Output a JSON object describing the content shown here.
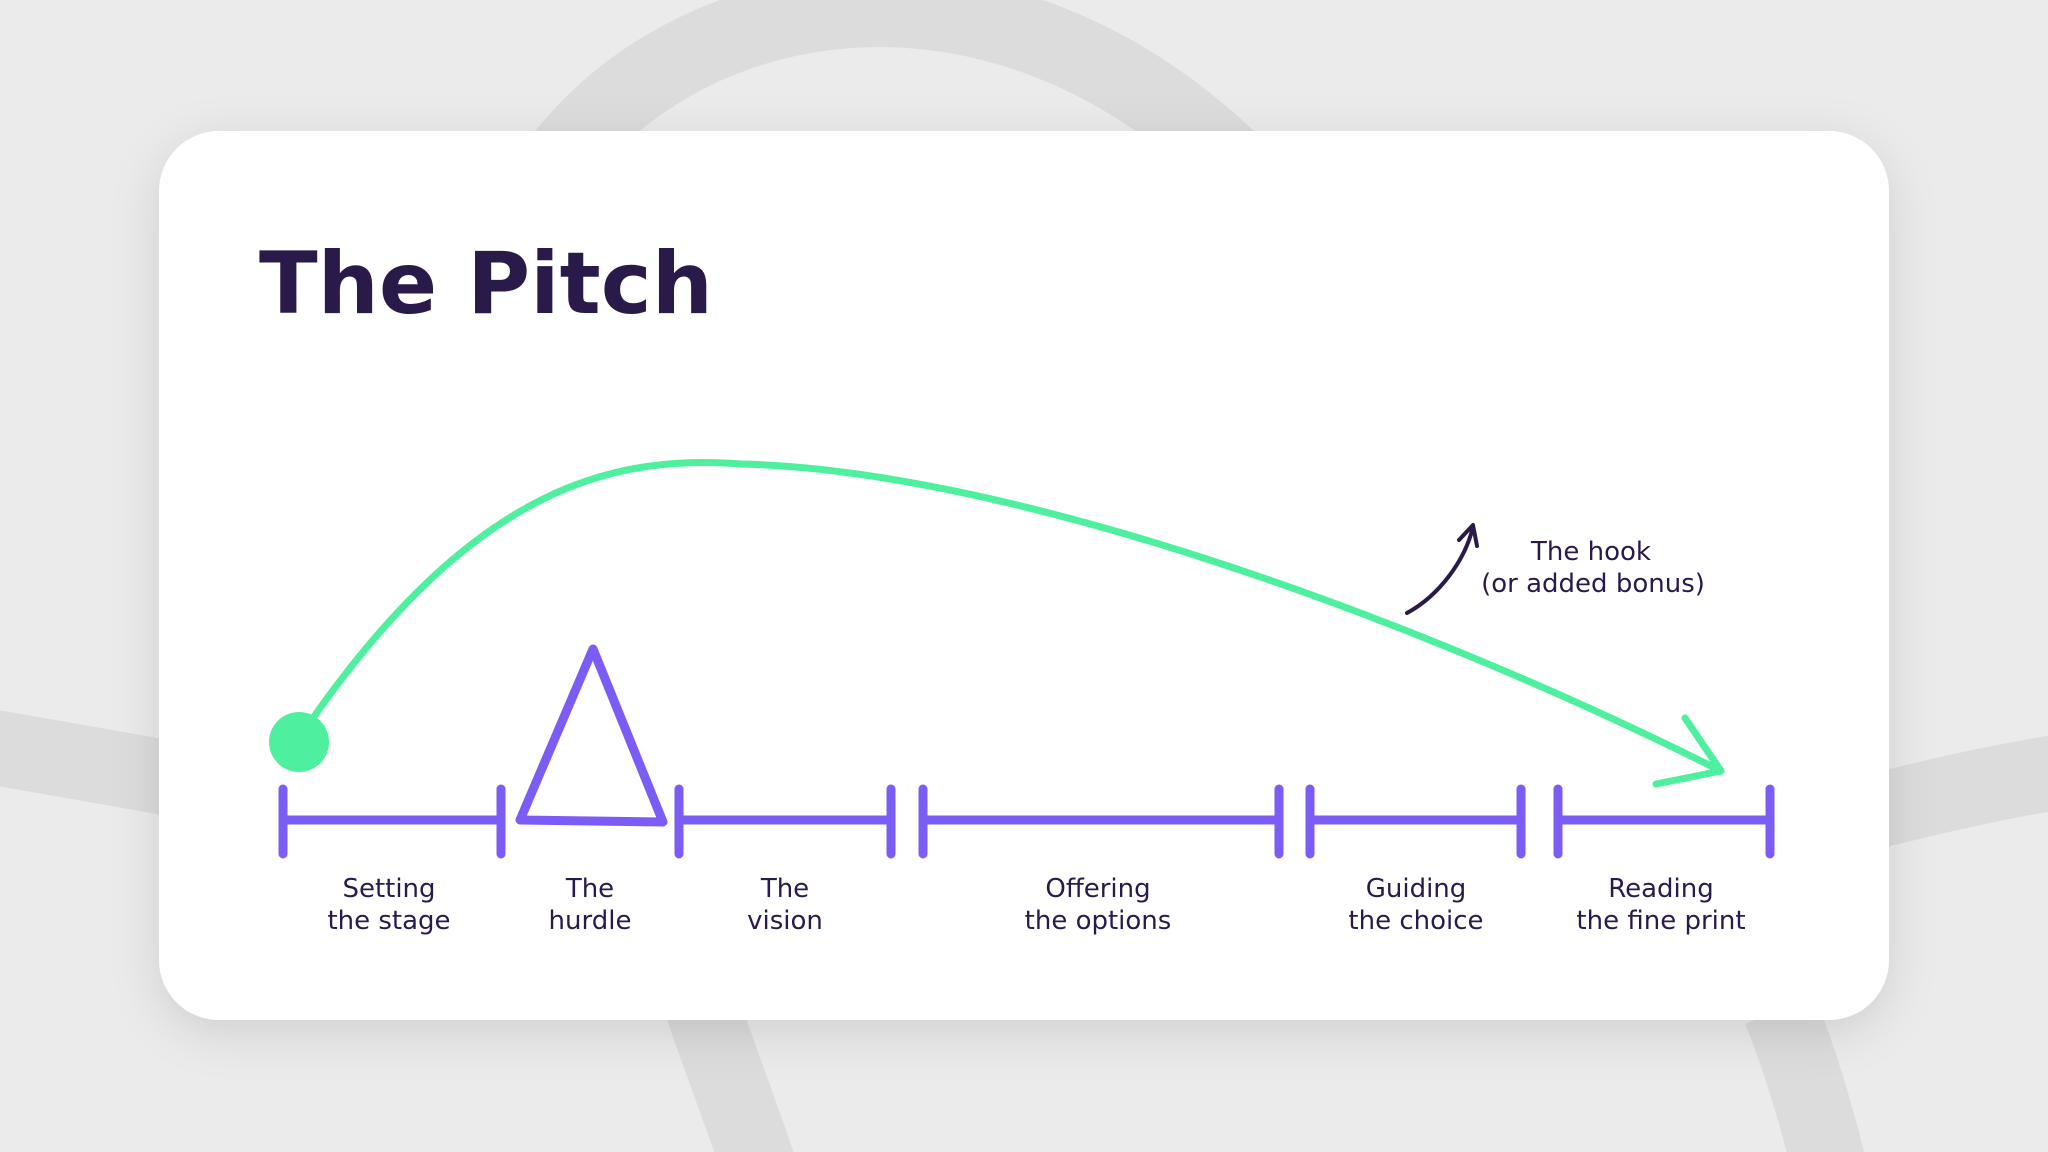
{
  "title": "The Pitch",
  "annotation": {
    "lines": [
      "The hook",
      "(or added bonus)"
    ]
  },
  "stages": [
    {
      "lines": [
        "Setting",
        "the stage"
      ]
    },
    {
      "lines": [
        "The",
        "hurdle"
      ]
    },
    {
      "lines": [
        "The",
        "vision"
      ]
    },
    {
      "lines": [
        "Offering",
        "the options"
      ]
    },
    {
      "lines": [
        "Guiding",
        "the choice"
      ]
    },
    {
      "lines": [
        "Reading",
        "the fine print"
      ]
    }
  ]
}
